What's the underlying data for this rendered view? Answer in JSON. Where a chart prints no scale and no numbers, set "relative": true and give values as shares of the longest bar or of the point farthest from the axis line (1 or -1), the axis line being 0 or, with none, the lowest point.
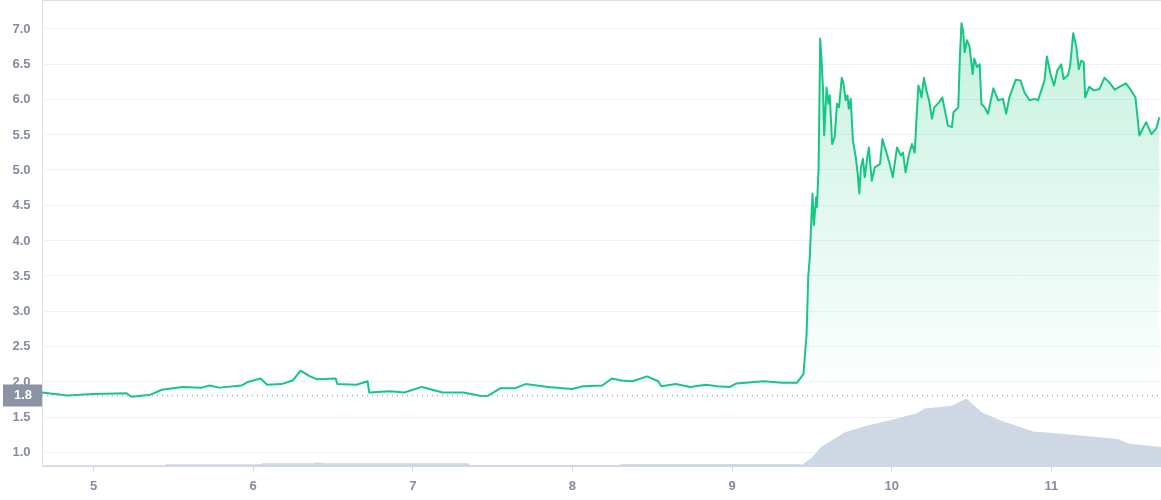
{
  "chart_data": [
    {
      "type": "area",
      "color": "#16c784",
      "x": [
        4.68,
        4.84,
        5.0,
        5.21,
        5.24,
        5.36,
        5.43,
        5.56,
        5.68,
        5.73,
        5.79,
        5.93,
        5.97,
        6.05,
        6.09,
        6.18,
        6.25,
        6.3,
        6.35,
        6.4,
        6.52,
        6.53,
        6.65,
        6.72,
        6.73,
        6.86,
        6.95,
        7.06,
        7.19,
        7.32,
        7.43,
        7.47,
        7.55,
        7.64,
        7.71,
        7.85,
        8.0,
        8.07,
        8.19,
        8.25,
        8.31,
        8.38,
        8.47,
        8.54,
        8.56,
        8.65,
        8.74,
        8.84,
        8.91,
        8.99,
        9.03,
        9.2,
        9.32,
        9.41,
        9.45,
        9.47,
        9.48,
        9.49,
        9.5,
        9.507,
        9.515,
        9.53,
        9.535,
        9.545,
        9.555,
        9.563,
        9.573,
        9.58,
        9.595,
        9.607,
        9.615,
        9.63,
        9.646,
        9.66,
        9.673,
        9.69,
        9.7,
        9.715,
        9.726,
        9.734,
        9.746,
        9.76,
        9.778,
        9.79,
        9.8,
        9.81,
        9.823,
        9.834,
        9.85,
        9.86,
        9.878,
        9.897,
        9.93,
        9.945,
        9.966,
        9.99,
        10.01,
        10.036,
        10.06,
        10.074,
        10.09,
        10.11,
        10.13,
        10.147,
        10.16,
        10.17,
        10.18,
        10.19,
        10.205,
        10.22,
        10.237,
        10.255,
        10.27,
        10.3,
        10.32,
        10.345,
        10.355,
        10.38,
        10.39,
        10.42,
        10.43,
        10.44,
        10.45,
        10.46,
        10.474,
        10.49,
        10.51,
        10.52,
        10.537,
        10.554,
        10.565,
        10.585,
        10.606,
        10.64,
        10.67,
        10.7,
        10.72,
        10.74,
        10.78,
        10.81,
        10.835,
        10.867,
        10.9,
        10.92,
        10.94,
        10.96,
        10.975,
        11.0,
        11.02,
        11.04,
        11.065,
        11.08,
        11.106,
        11.12,
        11.14,
        11.16,
        11.175,
        11.19,
        11.206,
        11.215,
        11.24,
        11.27,
        11.305,
        11.336,
        11.367,
        11.4,
        11.43,
        11.47,
        11.5,
        11.53,
        11.545,
        11.555,
        11.576,
        11.597,
        11.63,
        11.66,
        11.68
      ],
      "values": [
        1.84,
        1.8,
        1.82,
        1.83,
        1.78,
        1.81,
        1.88,
        1.92,
        1.91,
        1.94,
        1.91,
        1.94,
        1.99,
        2.04,
        1.95,
        1.96,
        2.01,
        2.15,
        2.08,
        2.03,
        2.04,
        1.96,
        1.95,
        2.0,
        1.84,
        1.86,
        1.84,
        1.92,
        1.84,
        1.84,
        1.79,
        1.79,
        1.9,
        1.9,
        1.96,
        1.92,
        1.89,
        1.93,
        1.94,
        2.04,
        2.01,
        2.0,
        2.07,
        2.0,
        1.93,
        1.96,
        1.92,
        1.95,
        1.93,
        1.92,
        1.97,
        2.0,
        1.98,
        1.98,
        2.1,
        2.67,
        3.48,
        3.76,
        4.32,
        4.66,
        4.21,
        4.61,
        4.47,
        5.03,
        6.85,
        6.57,
        6.12,
        5.48,
        6.16,
        5.93,
        6.05,
        5.36,
        5.46,
        5.93,
        5.88,
        6.3,
        6.23,
        5.98,
        6.05,
        5.86,
        6.0,
        5.41,
        5.17,
        4.94,
        4.66,
        5.03,
        5.15,
        4.89,
        5.17,
        5.31,
        4.84,
        5.03,
        5.08,
        5.43,
        5.27,
        5.08,
        4.89,
        5.31,
        5.2,
        5.24,
        4.96,
        5.2,
        5.36,
        5.24,
        5.79,
        6.19,
        6.12,
        6.02,
        6.3,
        6.12,
        5.98,
        5.72,
        5.88,
        5.95,
        6.02,
        5.74,
        5.62,
        5.6,
        5.81,
        5.88,
        6.59,
        7.07,
        6.97,
        6.66,
        6.83,
        6.75,
        6.35,
        6.57,
        6.45,
        6.49,
        5.93,
        5.88,
        5.79,
        6.15,
        5.98,
        6.0,
        5.79,
        6.02,
        6.27,
        6.26,
        6.09,
        5.98,
        6.0,
        5.98,
        6.12,
        6.26,
        6.6,
        6.33,
        6.19,
        6.4,
        6.49,
        6.28,
        6.33,
        6.45,
        6.93,
        6.73,
        6.42,
        6.54,
        6.52,
        6.02,
        6.17,
        6.12,
        6.14,
        6.3,
        6.23,
        6.13,
        6.17,
        6.22,
        6.13,
        6.02,
        5.69,
        5.48,
        5.58,
        5.67,
        5.5,
        5.58,
        5.74
      ],
      "xlim": [
        4.68,
        11.69
      ],
      "xticks": [
        5,
        6,
        7,
        8,
        9,
        10,
        11
      ],
      "ylim": [
        0.8,
        7.4
      ],
      "yticks": [
        {
          "value": 1,
          "label": "1.0"
        },
        {
          "value": 1.5,
          "label": "1.5"
        },
        {
          "value": 2,
          "label": "2.0"
        },
        {
          "value": 2.5,
          "label": "2.5"
        },
        {
          "value": 3,
          "label": "3.0"
        },
        {
          "value": 3.5,
          "label": "3.5"
        },
        {
          "value": 4,
          "label": "4.0"
        },
        {
          "value": 4.5,
          "label": "4.5"
        },
        {
          "value": 5,
          "label": "5.0"
        },
        {
          "value": 5.5,
          "label": "5.5"
        },
        {
          "value": 6,
          "label": "6.0"
        },
        {
          "value": 6.5,
          "label": "6.5"
        },
        {
          "value": 7,
          "label": "7.0"
        }
      ],
      "grid": "y",
      "ref_lines": [
        {
          "axis": "y",
          "value": 1.8,
          "label": "1.8",
          "color": "#a6adbb",
          "line_style": "dotted"
        }
      ]
    },
    {
      "type": "area",
      "relative": true,
      "color": "#cfd6e4",
      "x": [
        4.68,
        5.45,
        5.46,
        6.05,
        6.06,
        6.38,
        6.4,
        6.45,
        7.35,
        7.36,
        8.3,
        8.31,
        9.42,
        9.44,
        9.5,
        9.56,
        9.71,
        9.85,
        10.0,
        10.16,
        10.21,
        10.38,
        10.47,
        10.57,
        10.69,
        10.89,
        11.05,
        11.42,
        11.49,
        11.69
      ],
      "values": [
        0.01,
        0.01,
        0.025,
        0.025,
        0.04,
        0.04,
        0.055,
        0.04,
        0.04,
        0.015,
        0.015,
        0.03,
        0.03,
        0.02,
        0.12,
        0.28,
        0.5,
        0.6,
        0.68,
        0.78,
        0.85,
        0.89,
        1.0,
        0.79,
        0.67,
        0.51,
        0.48,
        0.4,
        0.33,
        0.28
      ],
      "xlim": [
        4.68,
        11.69
      ],
      "tick_labels": false
    }
  ]
}
